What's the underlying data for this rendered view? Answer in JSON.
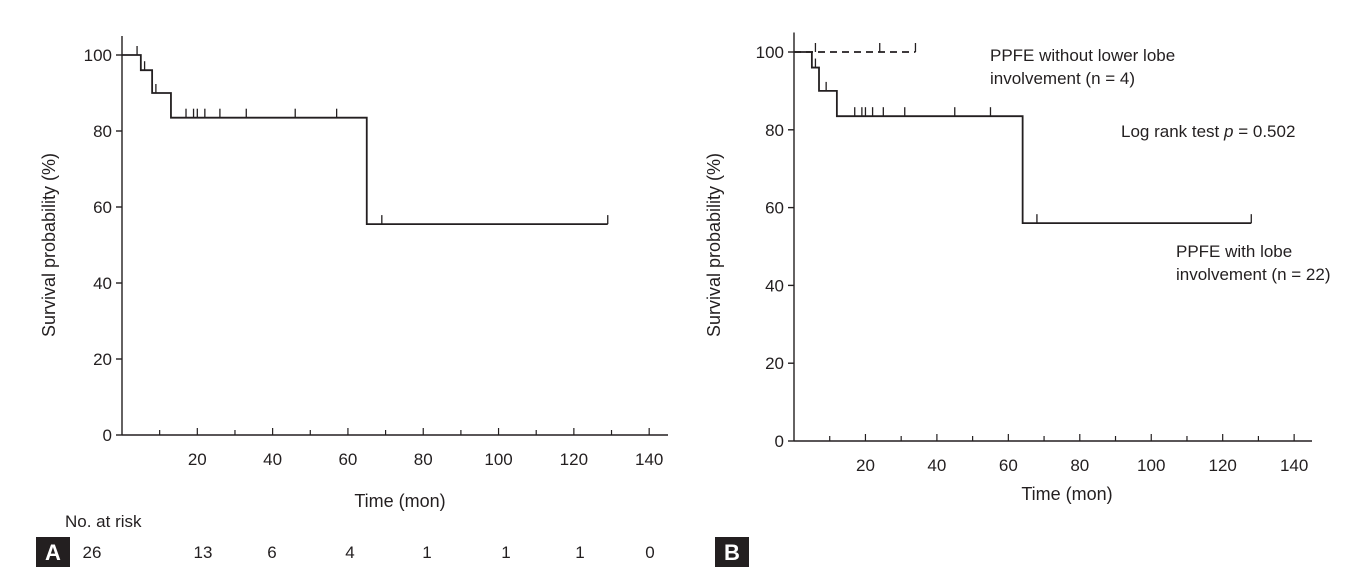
{
  "chart_data": [
    {
      "panel": "A",
      "type": "line",
      "xlabel": "Time (mon)",
      "ylabel": "Survival probability (%)",
      "xlim": [
        0,
        145
      ],
      "ylim": [
        0,
        105
      ],
      "x_ticks": [
        20,
        40,
        60,
        80,
        100,
        120,
        140
      ],
      "y_ticks": [
        0,
        20,
        40,
        60,
        80,
        100
      ],
      "series": [
        {
          "style": "solid",
          "steps": [
            [
              0,
              100
            ],
            [
              5,
              100
            ],
            [
              5,
              96
            ],
            [
              8,
              96
            ],
            [
              8,
              90
            ],
            [
              13,
              90
            ],
            [
              13,
              83.5
            ],
            [
              65,
              83.5
            ],
            [
              65,
              55.5
            ],
            [
              129,
              55.5
            ]
          ],
          "censor_times": [
            4,
            6,
            9,
            17,
            19,
            20,
            22,
            26,
            33,
            46,
            57,
            69,
            129
          ]
        }
      ],
      "risk_table": {
        "label": "No. at risk",
        "values": [
          "26",
          "13",
          "6",
          "4",
          "1",
          "1",
          "1",
          "0"
        ]
      }
    },
    {
      "panel": "B",
      "type": "line",
      "xlabel": "Time (mon)",
      "ylabel": "Survival probability (%)",
      "xlim": [
        0,
        145
      ],
      "ylim": [
        0,
        105
      ],
      "x_ticks": [
        20,
        40,
        60,
        80,
        100,
        120,
        140
      ],
      "y_ticks": [
        0,
        20,
        40,
        60,
        80,
        100
      ],
      "series": [
        {
          "style": "dashed",
          "steps": [
            [
              0,
              100
            ],
            [
              34,
              100
            ]
          ],
          "censor_times": [
            6,
            24,
            34
          ]
        },
        {
          "style": "solid",
          "steps": [
            [
              0,
              100
            ],
            [
              5,
              100
            ],
            [
              5,
              96
            ],
            [
              7,
              96
            ],
            [
              7,
              90
            ],
            [
              12,
              90
            ],
            [
              12,
              83.5
            ],
            [
              64,
              83.5
            ],
            [
              64,
              56
            ],
            [
              128,
              56
            ]
          ],
          "censor_times": [
            6,
            9,
            17,
            19,
            20,
            22,
            25,
            31,
            45,
            55,
            68,
            128
          ]
        }
      ],
      "annotations": {
        "dashed_label_line1": "PPFE without lower lobe",
        "dashed_label_line2": "involvement (n = 4)",
        "test_prefix": "Log rank test ",
        "test_p": "p",
        "test_suffix": " = 0.502",
        "solid_label_line1": "PPFE with lobe",
        "solid_label_line2": "involvement (n = 22)"
      }
    }
  ]
}
